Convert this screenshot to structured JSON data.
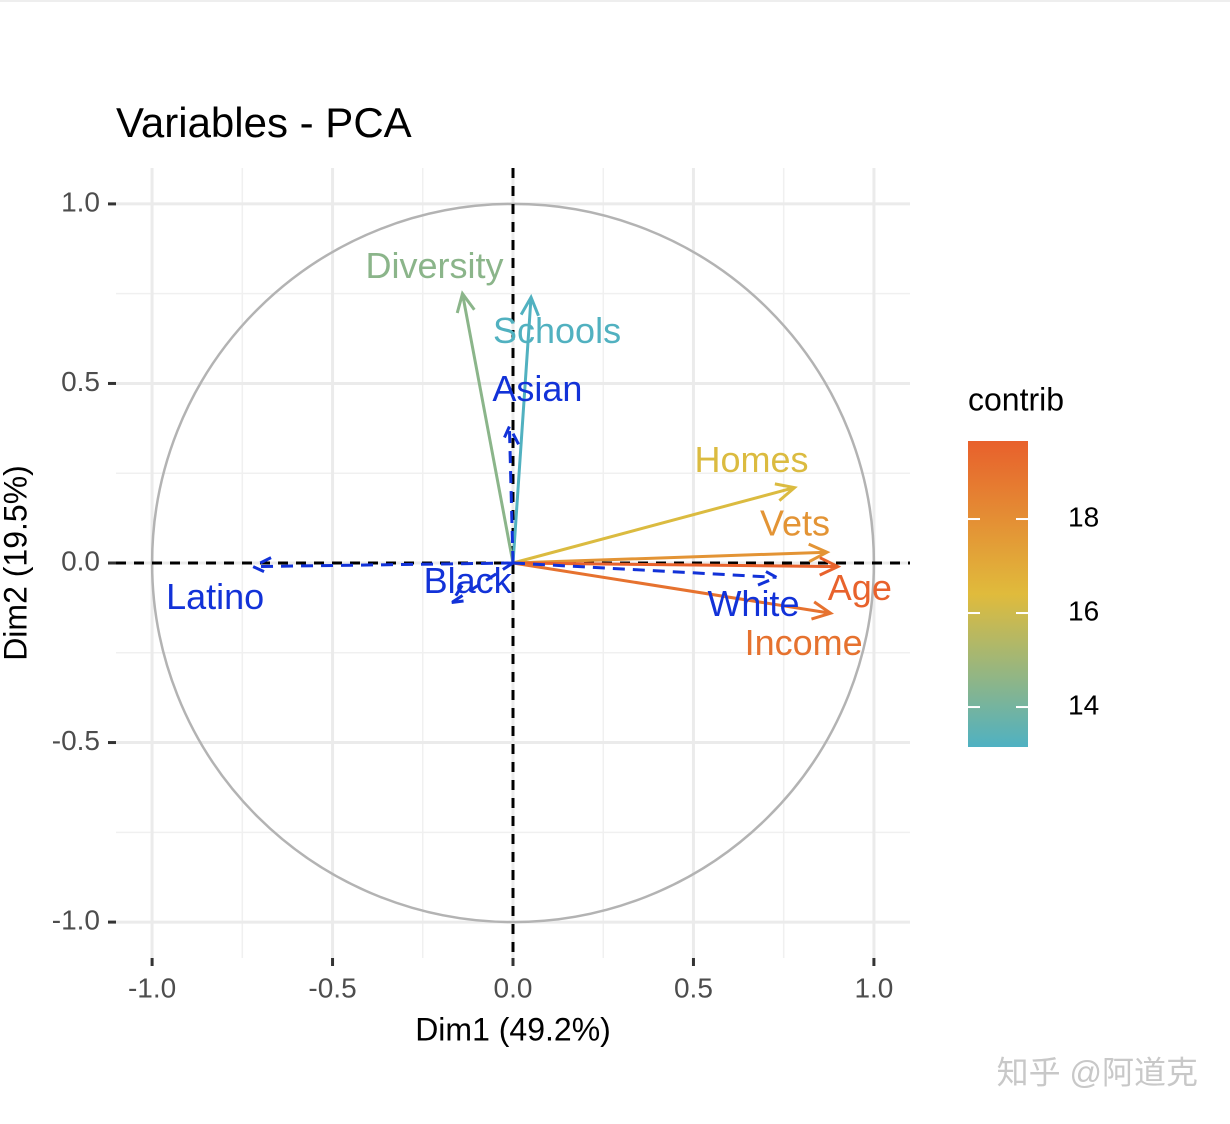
{
  "chart_data": {
    "type": "pca_variables",
    "title": "Variables - PCA",
    "x_label": "Dim1 (49.2%)",
    "y_label": "Dim2 (19.5%)",
    "xlim": [
      -1.1,
      1.1
    ],
    "ylim": [
      -1.1,
      1.1
    ],
    "xticks": [
      {
        "value": -1,
        "label": "-1.0"
      },
      {
        "value": -0.5,
        "label": "-0.5"
      },
      {
        "value": 0,
        "label": "0.0"
      },
      {
        "value": 0.5,
        "label": "0.5"
      },
      {
        "value": 1,
        "label": "1.0"
      }
    ],
    "yticks": [
      {
        "value": -1,
        "label": "-1.0"
      },
      {
        "value": -0.5,
        "label": "-0.5"
      },
      {
        "value": 0,
        "label": "0.0"
      },
      {
        "value": 0.5,
        "label": "0.5"
      },
      {
        "value": 1,
        "label": "1.0"
      }
    ],
    "minor_xticks": [
      -0.75,
      -0.25,
      0.25,
      0.75
    ],
    "minor_yticks": [
      -0.75,
      -0.25,
      0.25,
      0.75
    ],
    "grid": true,
    "variables": [
      {
        "name": "Diversity",
        "x": -0.14,
        "y": 0.75,
        "contrib": 14.5
      },
      {
        "name": "Schools",
        "x": 0.05,
        "y": 0.74,
        "contrib": 13.2
      },
      {
        "name": "Homes",
        "x": 0.78,
        "y": 0.21,
        "contrib": 16.3
      },
      {
        "name": "Vets",
        "x": 0.87,
        "y": 0.03,
        "contrib": 17.8
      },
      {
        "name": "Age",
        "x": 0.9,
        "y": -0.01,
        "contrib": 19.6
      },
      {
        "name": "Income",
        "x": 0.88,
        "y": -0.14,
        "contrib": 19.0
      }
    ],
    "supplementary": [
      {
        "name": "Asian",
        "x": -0.01,
        "y": 0.38
      },
      {
        "name": "White",
        "x": 0.73,
        "y": -0.04
      },
      {
        "name": "Black",
        "x": -0.17,
        "y": -0.11
      },
      {
        "name": "Latino",
        "x": -0.72,
        "y": -0.01
      }
    ],
    "supplementary_color": "#1232d8",
    "legend": {
      "title": "contrib",
      "limits": [
        13.15,
        19.66
      ],
      "ticks": [
        14,
        16,
        18
      ],
      "colors": [
        "#4fb1c2",
        "#e0bb3c",
        "#e8602c"
      ]
    }
  },
  "watermark": "知乎 @阿道克"
}
